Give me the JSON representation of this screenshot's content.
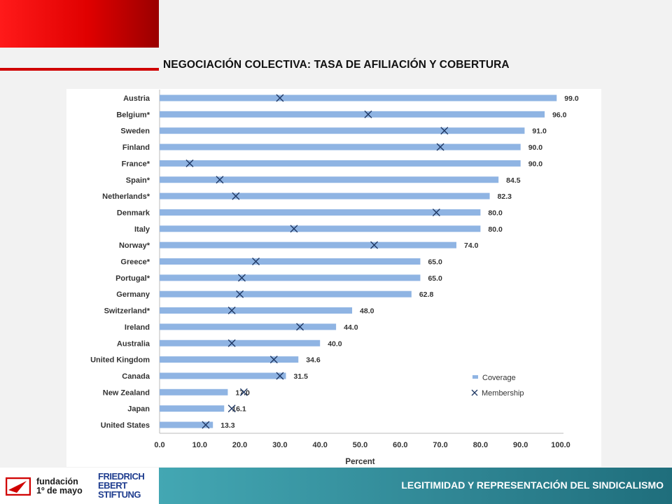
{
  "slide": {
    "title": "NEGOCIACIÓN COLECTIVA: TASA DE AFILIACIÓN Y COBERTURA",
    "footer_text": "LEGITIMIDAD Y REPRESENTACIÓN DEL SINDICALISMO",
    "logo1_line1": "fundación",
    "logo1_line2": "1º de mayo",
    "logo2_line1": "FRIEDRICH",
    "logo2_line2": "EBERT",
    "logo2_line3": "STIFTUNG",
    "accent_red": "#e00000",
    "footer_teal": "#2f8593"
  },
  "chart_data": {
    "type": "bar",
    "orientation": "horizontal",
    "categories": [
      "Austria",
      "Belgium*",
      "Sweden",
      "Finland",
      "France*",
      "Spain*",
      "Netherlands*",
      "Denmark",
      "Italy",
      "Norway*",
      "Greece*",
      "Portugal*",
      "Germany",
      "Switzerland*",
      "Ireland",
      "Australia",
      "United Kingdom",
      "Canada",
      "New Zealand",
      "Japan",
      "United States"
    ],
    "series": [
      {
        "name": "Coverage",
        "type": "bar",
        "color": "#8fb4e3",
        "values": [
          99.0,
          96.0,
          91.0,
          90.0,
          90.0,
          84.5,
          82.3,
          80.0,
          80.0,
          74.0,
          65.0,
          65.0,
          62.8,
          48.0,
          44.0,
          40.0,
          34.6,
          31.5,
          17.0,
          16.1,
          13.3
        ]
      },
      {
        "name": "Membership",
        "type": "marker",
        "marker": "x",
        "color": "#1f3864",
        "values": [
          30,
          52,
          71,
          70,
          7.5,
          15,
          19,
          69,
          33.5,
          53.5,
          24,
          20.5,
          20,
          18,
          35,
          18,
          28.5,
          30,
          21,
          18,
          11.5
        ]
      }
    ],
    "data_labels": [
      "99.0",
      "96.0",
      "91.0",
      "90.0",
      "90.0",
      "84.5",
      "82.3",
      "80.0",
      "80.0",
      "74.0",
      "65.0",
      "65.0",
      "62.8",
      "48.0",
      "44.0",
      "40.0",
      "34.6",
      "31.5",
      "17.0",
      "16.1",
      "13.3"
    ],
    "xlabel": "Percent",
    "xlim": [
      0,
      100
    ],
    "xticks": [
      "0.0",
      "10.0",
      "20.0",
      "30.0",
      "40.0",
      "50.0",
      "60.0",
      "70.0",
      "80.0",
      "90.0",
      "100.0"
    ],
    "legend_position": "bottom-right",
    "legend": [
      "Coverage",
      "Membership"
    ]
  }
}
